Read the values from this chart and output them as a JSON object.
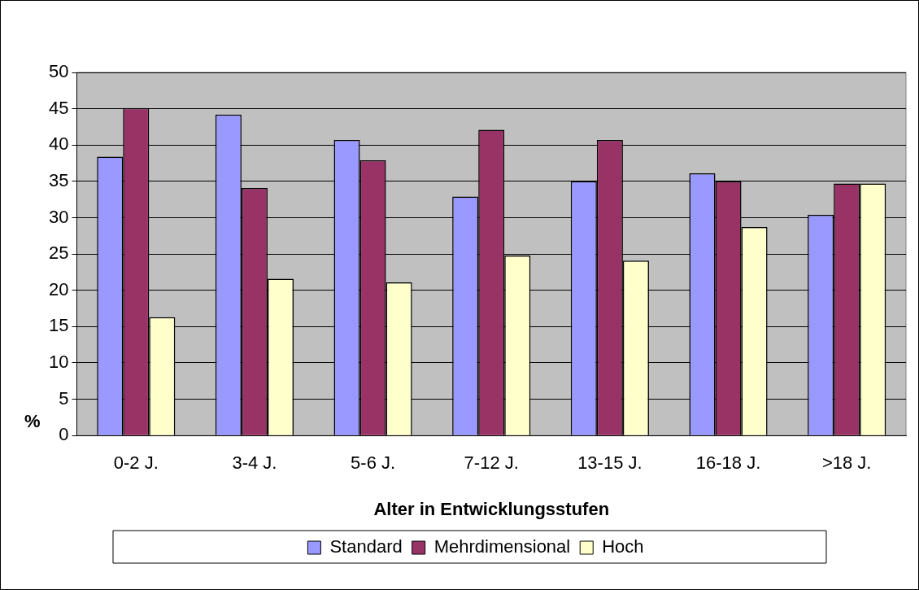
{
  "chart_data": {
    "type": "bar",
    "xlabel": "Alter in Entwicklungsstufen",
    "ylabel": "%",
    "categories": [
      "0-2 J.",
      "3-4 J.",
      "5-6 J.",
      "7-12 J.",
      "13-15 J.",
      "16-18 J.",
      ">18 J."
    ],
    "series": [
      {
        "name": "Standard",
        "color": "#9999ff",
        "values": [
          38.4,
          44.2,
          40.7,
          32.9,
          35.0,
          36.1,
          30.4
        ]
      },
      {
        "name": "Mehrdimensional",
        "color": "#993366",
        "values": [
          45.1,
          34.1,
          37.9,
          42.1,
          40.7,
          35.0,
          34.7
        ]
      },
      {
        "name": "Hoch",
        "color": "#ffffcc",
        "values": [
          16.3,
          21.6,
          21.1,
          24.8,
          24.1,
          28.7,
          34.7
        ]
      }
    ],
    "ylim": [
      0,
      50
    ],
    "yticks": [
      0,
      5,
      10,
      15,
      20,
      25,
      30,
      35,
      40,
      45,
      50
    ],
    "grid": "y",
    "legend": "bottom"
  }
}
